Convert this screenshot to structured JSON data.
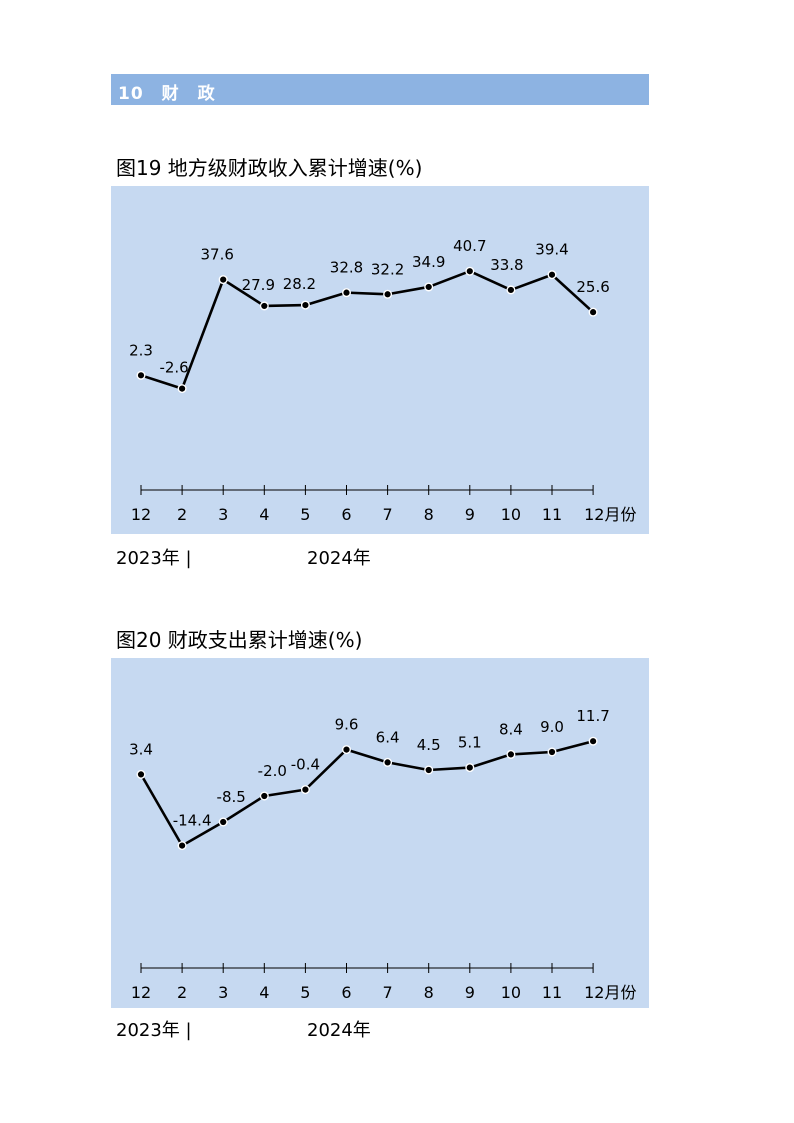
{
  "section": {
    "label": "10　财　政"
  },
  "figures": [
    {
      "title": "图19  地方级财政收入累计增速(%)",
      "year_start": "2023年 |",
      "year_end": "2024年"
    },
    {
      "title": "图20  财政支出累计增速(%)",
      "year_start": "2023年 |",
      "year_end": "2024年"
    }
  ],
  "chart_data": [
    {
      "type": "line",
      "title": "图19  地方级财政收入累计增速(%)",
      "categories": [
        "12",
        "2",
        "3",
        "4",
        "5",
        "6",
        "7",
        "8",
        "9",
        "10",
        "11",
        "12月份"
      ],
      "values": [
        2.3,
        -2.6,
        37.6,
        27.9,
        28.2,
        32.8,
        32.2,
        34.9,
        40.7,
        33.8,
        39.4,
        25.6
      ],
      "labels": [
        "2.3",
        "-2.6",
        "37.6",
        "27.9",
        "28.2",
        "32.8",
        "32.2",
        "34.9",
        "40.7",
        "33.8",
        "39.4",
        "25.6"
      ],
      "ylim": [
        -40,
        50
      ],
      "grid": false,
      "line_color": "#000000",
      "background": "#c6d9f1"
    },
    {
      "type": "line",
      "title": "图20  财政支出累计增速(%)",
      "categories": [
        "12",
        "2",
        "3",
        "4",
        "5",
        "6",
        "7",
        "8",
        "9",
        "10",
        "11",
        "12月份"
      ],
      "values": [
        3.4,
        -14.4,
        -8.5,
        -2.0,
        -0.4,
        9.6,
        6.4,
        4.5,
        5.1,
        8.4,
        9.0,
        11.7
      ],
      "labels": [
        "3.4",
        "-14.4",
        "-8.5",
        "-2.0",
        "-0.4",
        "9.6",
        "6.4",
        "4.5",
        "5.1",
        "8.4",
        "9.0",
        "11.7"
      ],
      "ylim": [
        -45,
        20
      ],
      "grid": false,
      "line_color": "#000000",
      "background": "#c6d9f1"
    }
  ]
}
